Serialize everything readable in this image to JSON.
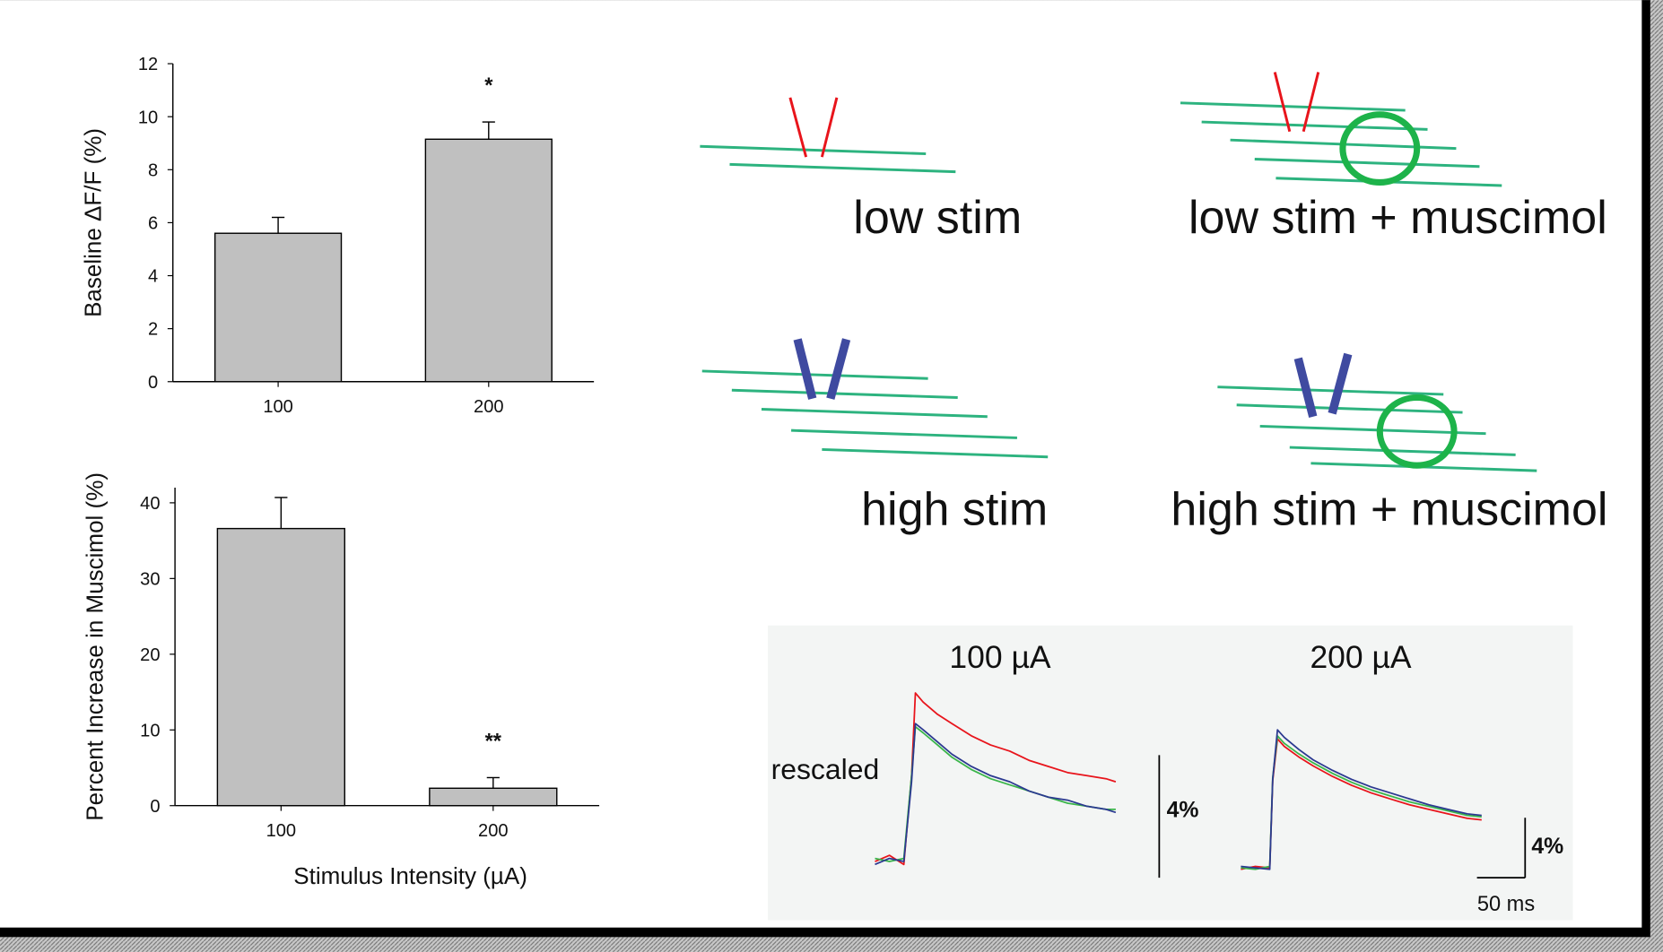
{
  "chart_data": [
    {
      "type": "bar",
      "ylabel": "Baseline ΔF/F (%)",
      "categories": [
        "100",
        "200"
      ],
      "values": [
        5.6,
        9.15
      ],
      "errors": [
        0.6,
        0.65
      ],
      "significance": [
        null,
        "*"
      ],
      "color": "#c0c0c0",
      "ylim": [
        0,
        12
      ],
      "yticks": [
        0,
        2,
        4,
        6,
        8,
        10,
        12
      ]
    },
    {
      "type": "bar",
      "ylabel": "Percent Increase in Muscimol (%)",
      "xlabel": "Stimulus Intensity (µA)",
      "categories": [
        "100",
        "200"
      ],
      "values": [
        36.6,
        2.3
      ],
      "errors": [
        4.1,
        1.4
      ],
      "significance": [
        null,
        "**"
      ],
      "color": "#c0c0c0",
      "ylim": [
        0,
        42
      ],
      "yticks": [
        0,
        10,
        20,
        30,
        40
      ]
    },
    {
      "type": "line",
      "title": "100 µA",
      "annotation": "rescaled",
      "x": [
        0,
        15,
        30,
        38,
        42,
        50,
        65,
        80,
        100,
        120,
        140,
        160,
        180,
        200,
        220,
        240,
        250
      ],
      "xlim": [
        0,
        250
      ],
      "ylim": [
        -0.4,
        6
      ],
      "series": [
        {
          "color": "#e8141b",
          "values": [
            0.2,
            0.4,
            0.1,
            3.0,
            5.7,
            5.4,
            5.0,
            4.7,
            4.3,
            4.0,
            3.8,
            3.5,
            3.3,
            3.1,
            3.0,
            2.9,
            2.8
          ]
        },
        {
          "color": "#3ab54a",
          "values": [
            0.3,
            0.2,
            0.3,
            3.0,
            4.6,
            4.4,
            4.0,
            3.6,
            3.2,
            2.9,
            2.7,
            2.5,
            2.3,
            2.1,
            2.0,
            1.9,
            1.9
          ]
        },
        {
          "color": "#2b3990",
          "values": [
            0.1,
            0.3,
            0.2,
            2.8,
            4.7,
            4.5,
            4.1,
            3.7,
            3.3,
            3.0,
            2.8,
            2.5,
            2.3,
            2.2,
            2.0,
            1.9,
            1.8
          ]
        }
      ],
      "scale_bars": {
        "y": {
          "value": 4,
          "label": "4%"
        }
      }
    },
    {
      "type": "line",
      "title": "200 µA",
      "x": [
        0,
        15,
        30,
        33,
        38,
        45,
        60,
        75,
        95,
        115,
        135,
        155,
        175,
        195,
        215,
        235,
        250
      ],
      "xlim": [
        0,
        250
      ],
      "ylim": [
        -0.6,
        10
      ],
      "series": [
        {
          "color": "#e8141b",
          "values": [
            0.1,
            0.3,
            0.2,
            6.0,
            8.8,
            8.3,
            7.6,
            7.0,
            6.3,
            5.7,
            5.2,
            4.8,
            4.4,
            4.1,
            3.8,
            3.5,
            3.4
          ]
        },
        {
          "color": "#3ab54a",
          "values": [
            0.2,
            0.1,
            0.3,
            6.2,
            9.0,
            8.5,
            7.8,
            7.2,
            6.5,
            5.9,
            5.4,
            5.0,
            4.6,
            4.3,
            4.0,
            3.7,
            3.6
          ]
        },
        {
          "color": "#2b3990",
          "values": [
            0.3,
            0.2,
            0.1,
            6.1,
            9.4,
            8.9,
            8.1,
            7.4,
            6.7,
            6.1,
            5.6,
            5.2,
            4.8,
            4.4,
            4.1,
            3.8,
            3.7
          ]
        }
      ],
      "scale_bars": {
        "y": {
          "value": 4,
          "label": "4%"
        },
        "x": {
          "value": 50,
          "label": "50 ms"
        }
      }
    }
  ],
  "diagram": {
    "panels": [
      {
        "label": "low stim"
      },
      {
        "label": "low stim + muscimol"
      },
      {
        "label": "high stim"
      },
      {
        "label": "high stim + muscimol"
      }
    ]
  }
}
